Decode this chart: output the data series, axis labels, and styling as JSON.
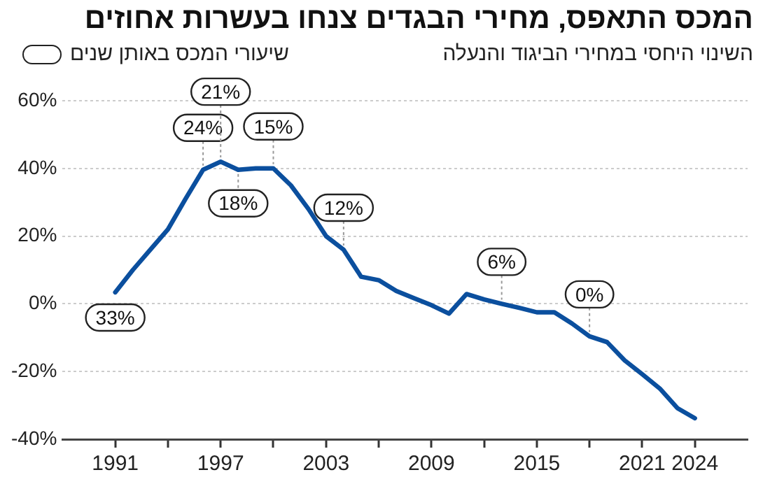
{
  "chart_data": {
    "type": "line",
    "title": "המכס התאפס, מחירי הבגדים צנחו בעשרות אחוזים",
    "subtitle": "השינוי היחסי במחירי הביגוד והנעלה",
    "legend_title": "שיעורי המכס באותן שנים",
    "x": [
      1991,
      1992,
      1993,
      1994,
      1995,
      1996,
      1997,
      1998,
      1999,
      2000,
      2001,
      2002,
      2003,
      2004,
      2005,
      2006,
      2007,
      2008,
      2009,
      2010,
      2011,
      2012,
      2013,
      2014,
      2015,
      2016,
      2017,
      2018,
      2019,
      2020,
      2021,
      2022,
      2023,
      2024
    ],
    "series": [
      {
        "color": "#0b4f9e",
        "values": [
          3.4,
          10,
          16,
          22,
          31,
          39.6,
          42,
          39.6,
          40,
          40,
          35,
          28,
          20,
          16,
          8,
          7,
          3.8,
          1.7,
          -0.4,
          -2.9,
          2.9,
          1.3,
          0,
          -1.2,
          -2.5,
          -2.5,
          -5.8,
          -9.6,
          -11.3,
          -16.7,
          -20.8,
          -25,
          -30.8,
          -33.8
        ]
      }
    ],
    "xlim": [
      1988,
      2027
    ],
    "xticks": [
      1991,
      {
        "value": 1994,
        "label": null
      },
      1997,
      {
        "value": 2000,
        "label": null
      },
      2003,
      {
        "value": 2006,
        "label": null
      },
      2009,
      {
        "value": 2012,
        "label": null
      },
      2015,
      {
        "value": 2018,
        "label": null
      },
      2021,
      2024
    ],
    "ylim": [
      -40,
      60
    ],
    "yticks": [
      {
        "value": -40,
        "label": "-40%"
      },
      {
        "value": -20,
        "label": "-20%"
      },
      {
        "value": 0,
        "label": "0%"
      },
      {
        "value": 20,
        "label": "20%"
      },
      {
        "value": 40,
        "label": "40%"
      },
      {
        "value": 60,
        "label": "60%"
      }
    ],
    "grid": "y",
    "legend": false,
    "marker": "none",
    "line_style": "solid",
    "annotations": [
      {
        "text": "33%",
        "x": 1991,
        "y": 3.4
      },
      {
        "text": "24%",
        "x": 1996,
        "y": 39.6
      },
      {
        "text": "21%",
        "x": 1997,
        "y": 42
      },
      {
        "text": "18%",
        "x": 1998,
        "y": 39.6
      },
      {
        "text": "15%",
        "x": 2000,
        "y": 40
      },
      {
        "text": "12%",
        "x": 2004,
        "y": 16
      },
      {
        "text": "6%",
        "x": 2013,
        "y": 0
      },
      {
        "text": "0%",
        "x": 2018,
        "y": -9.6
      }
    ]
  }
}
